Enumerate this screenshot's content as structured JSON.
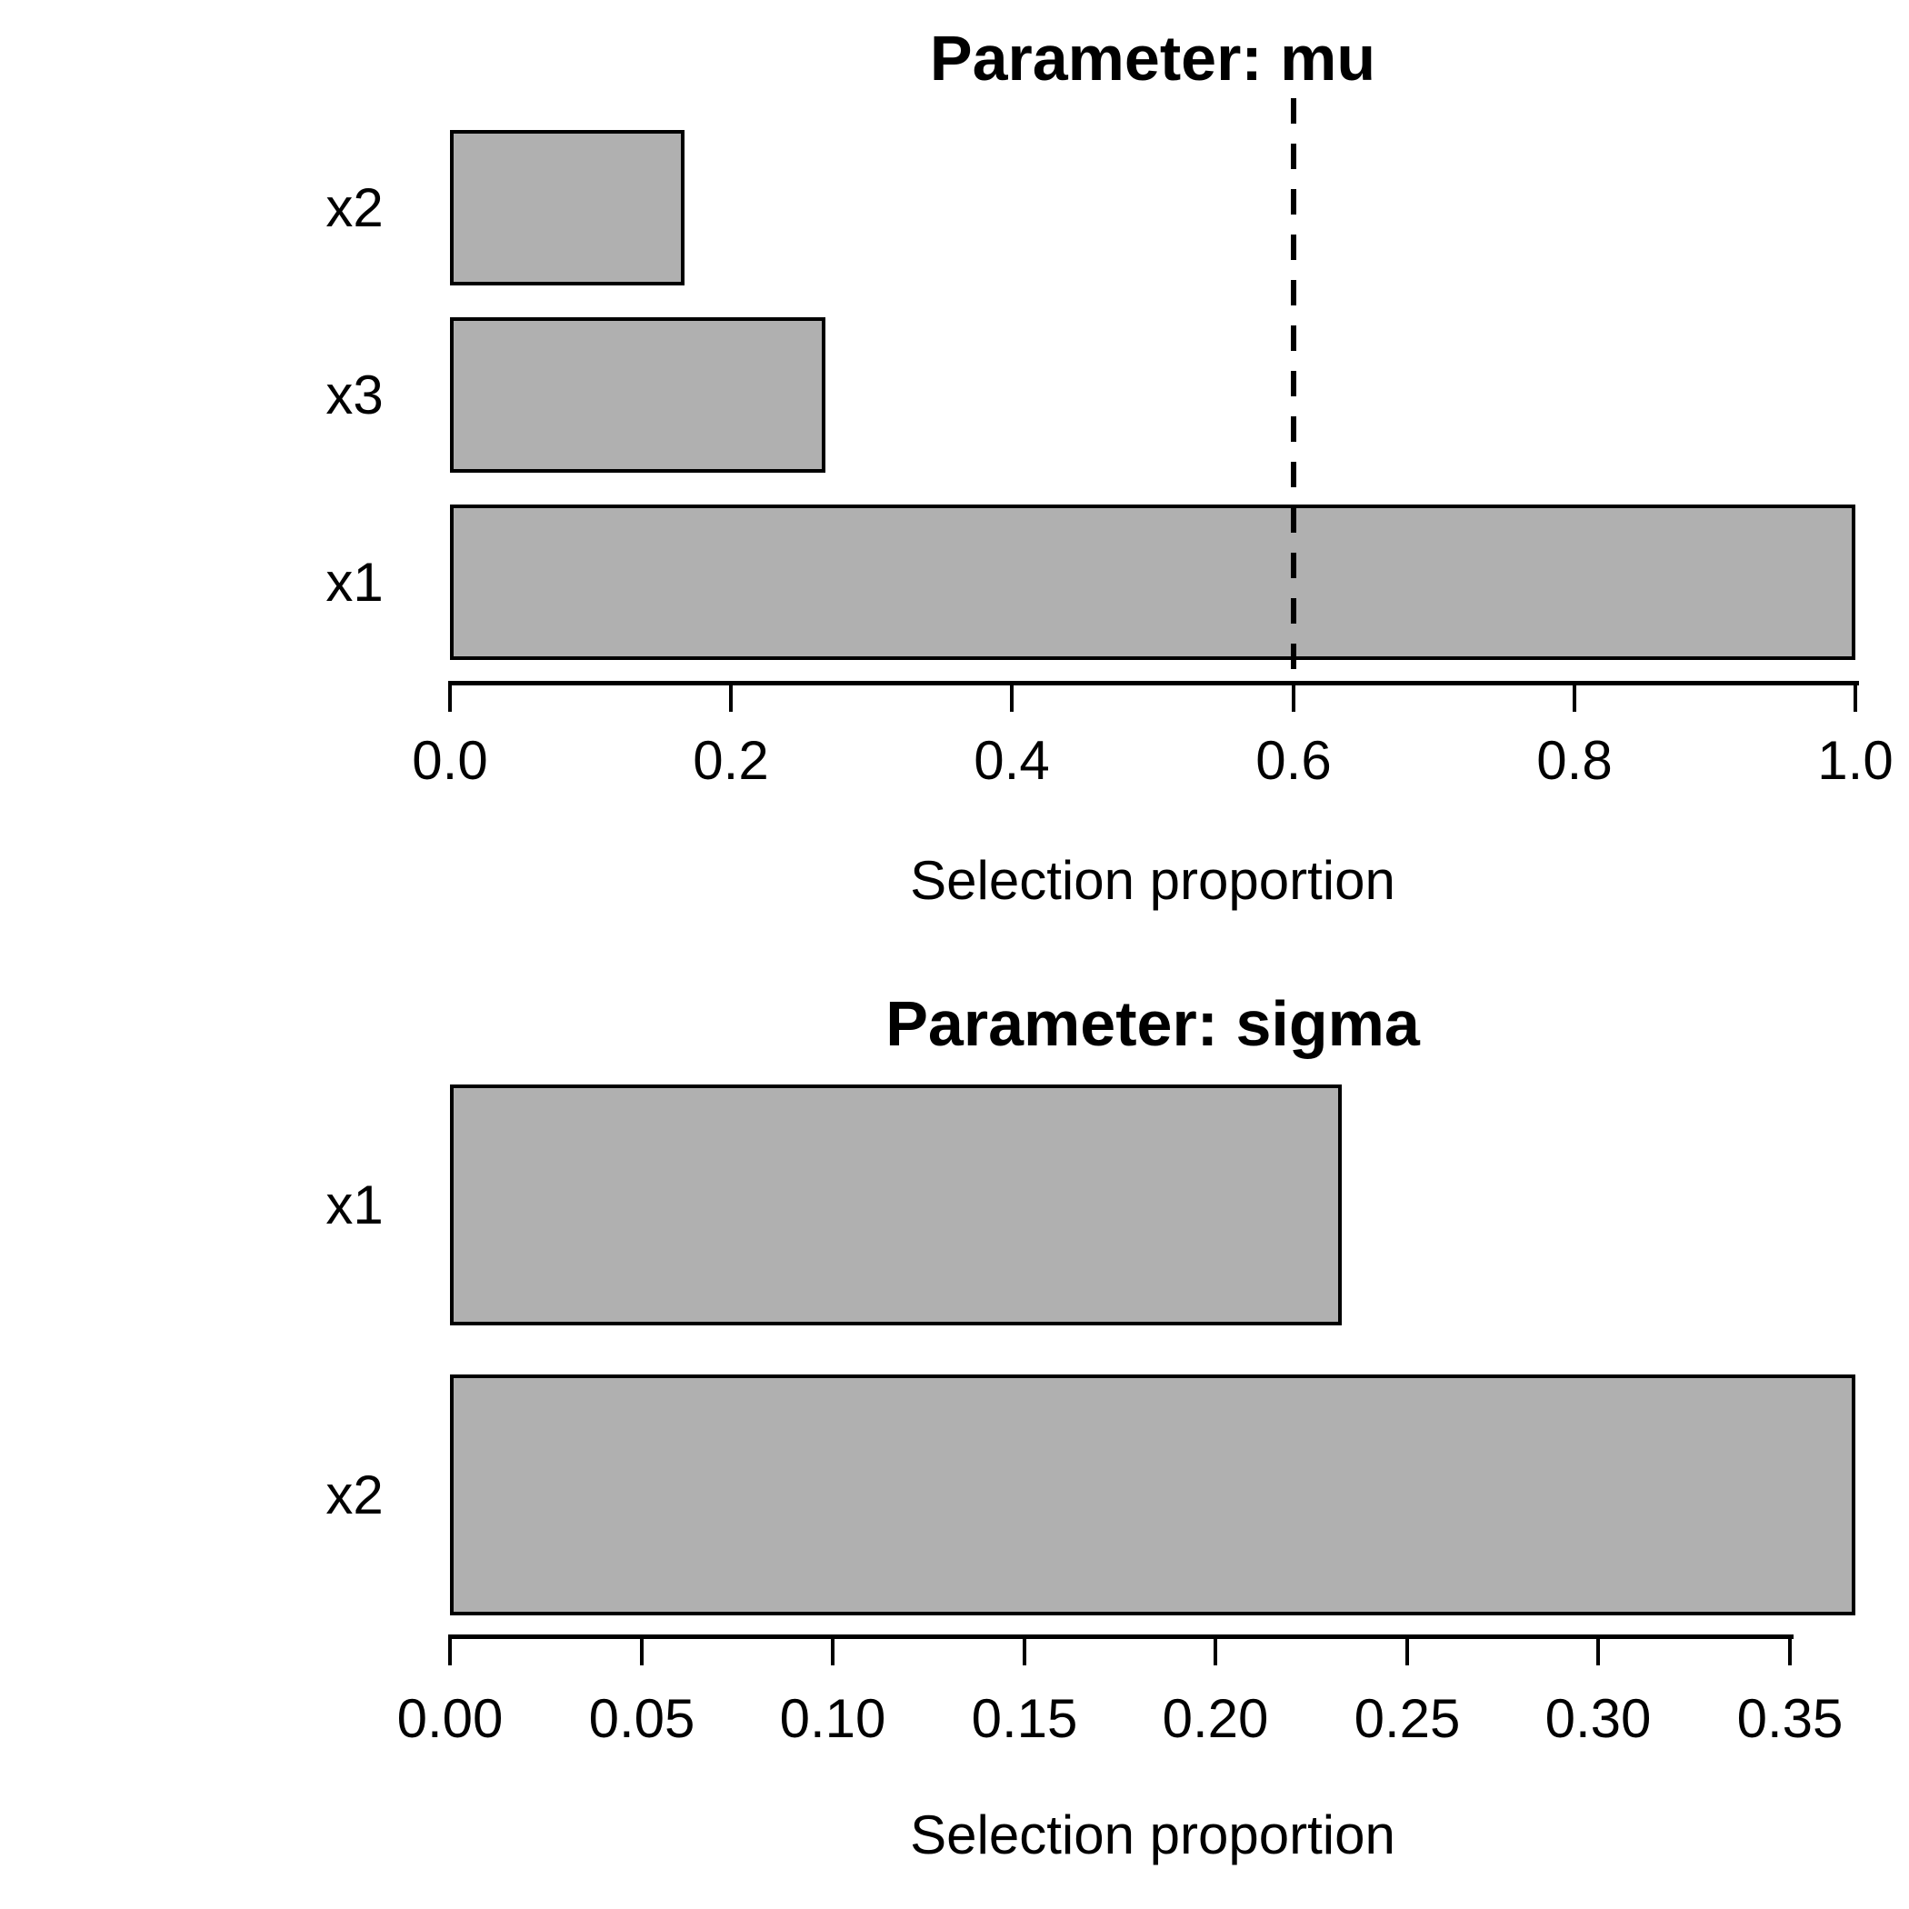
{
  "page": {
    "background": "#ffffff",
    "text_color": "#000000"
  },
  "chart_data": [
    {
      "type": "bar",
      "orientation": "horizontal",
      "title": "Parameter: mu",
      "xlabel": "Selection proportion",
      "categories": [
        "x2",
        "x3",
        "x1"
      ],
      "values": [
        0.167,
        0.267,
        1.0
      ],
      "xlim": [
        0,
        1.0
      ],
      "xticks": [
        0.0,
        0.2,
        0.4,
        0.6,
        0.8,
        1.0
      ],
      "xtick_labels": [
        "0.0",
        "0.2",
        "0.4",
        "0.6",
        "0.8",
        "1.0"
      ],
      "threshold_line": {
        "value": 0.6,
        "style": "dashed",
        "color": "#000000"
      },
      "bar_fill": "#B0B0B0",
      "bar_border": "#000000",
      "grid": false,
      "legend": null
    },
    {
      "type": "bar",
      "orientation": "horizontal",
      "title": "Parameter: sigma",
      "xlabel": "Selection proportion",
      "categories": [
        "x1",
        "x2"
      ],
      "values": [
        0.233,
        0.367
      ],
      "xlim": [
        0,
        0.367
      ],
      "xticks": [
        0.0,
        0.05,
        0.1,
        0.15,
        0.2,
        0.25,
        0.3,
        0.35
      ],
      "xtick_labels": [
        "0.00",
        "0.05",
        "0.10",
        "0.15",
        "0.20",
        "0.25",
        "0.30",
        "0.35"
      ],
      "threshold_line": null,
      "bar_fill": "#B0B0B0",
      "bar_border": "#000000",
      "grid": false,
      "legend": null
    }
  ]
}
